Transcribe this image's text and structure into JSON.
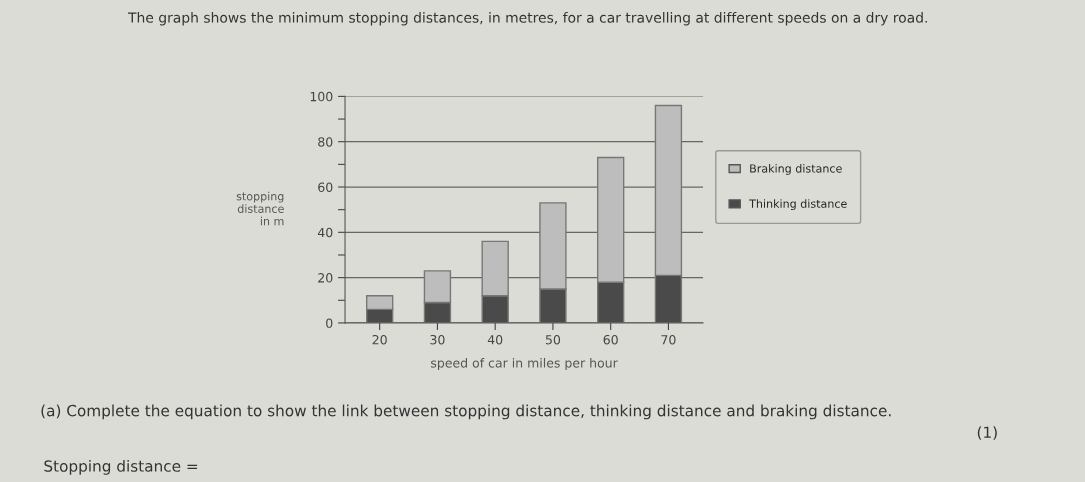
{
  "chart_data": {
    "type": "bar",
    "stacked": true,
    "title": "The graph shows the minimum stopping distances, in metres, for a car travelling at different speeds on a dry road.",
    "xlabel": "speed of car in miles per hour",
    "ylabel": "stopping\ndistance\nin m",
    "categories": [
      "20",
      "30",
      "40",
      "50",
      "60",
      "70"
    ],
    "series": [
      {
        "name": "Thinking distance",
        "color": "#4a4a4a",
        "values": [
          6,
          9,
          12,
          15,
          18,
          21
        ]
      },
      {
        "name": "Braking distance",
        "color": "#bdbdbd",
        "values": [
          6,
          14,
          24,
          38,
          55,
          75
        ]
      }
    ],
    "ylim": [
      0,
      100
    ],
    "yticks": [
      0,
      {
        "value": 10,
        "label": null
      },
      20,
      {
        "value": 30,
        "label": null
      },
      40,
      {
        "value": 50,
        "label": null
      },
      60,
      {
        "value": 70,
        "label": null
      },
      80,
      {
        "value": 90,
        "label": null
      },
      100
    ],
    "grid": "y",
    "legend": "right",
    "annotations": [
      "(a) Complete the equation to show the link between stopping distance, thinking distance and braking distance.",
      "(1)",
      "Stopping distance ="
    ]
  }
}
